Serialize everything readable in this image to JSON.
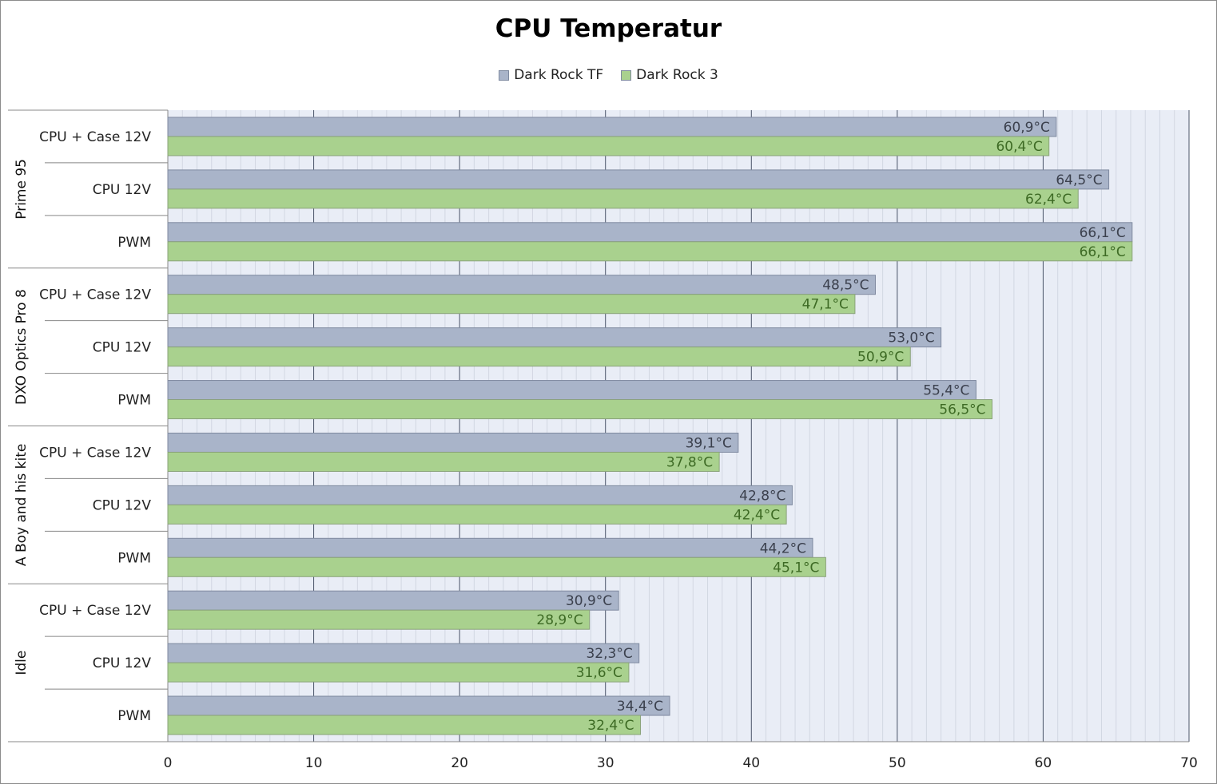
{
  "chart_data": {
    "type": "bar",
    "orientation": "horizontal",
    "title": "CPU Temperatur",
    "xlabel": "",
    "ylabel": "",
    "xlim": [
      0,
      70
    ],
    "xticks": [
      0,
      10,
      20,
      30,
      40,
      50,
      60,
      70
    ],
    "grid": true,
    "legend_position": "top",
    "groups": [
      {
        "name": "Prime 95",
        "categories": [
          "CPU + Case 12V",
          "CPU 12V",
          "PWM"
        ]
      },
      {
        "name": "DXO Optics Pro 8",
        "categories": [
          "CPU + Case 12V",
          "CPU 12V",
          "PWM"
        ]
      },
      {
        "name": "A Boy and his kite",
        "categories": [
          "CPU + Case 12V",
          "CPU 12V",
          "PWM"
        ]
      },
      {
        "name": "Idle",
        "categories": [
          "CPU + Case 12V",
          "CPU 12V",
          "PWM"
        ]
      }
    ],
    "series": [
      {
        "name": "Dark Rock TF",
        "color": "#a9b4c9",
        "label_color": "#3b404d",
        "values": [
          60.9,
          64.5,
          66.1,
          48.5,
          53.0,
          55.4,
          39.1,
          42.8,
          44.2,
          30.9,
          32.3,
          34.4
        ],
        "labels": [
          "60,9°C",
          "64,5°C",
          "66,1°C",
          "48,5°C",
          "53,0°C",
          "55,4°C",
          "39,1°C",
          "42,8°C",
          "44,2°C",
          "30,9°C",
          "32,3°C",
          "34,4°C"
        ]
      },
      {
        "name": "Dark Rock 3",
        "color": "#a9d18e",
        "label_color": "#3d6a24",
        "values": [
          60.4,
          62.4,
          66.1,
          47.1,
          50.9,
          56.5,
          37.8,
          42.4,
          45.1,
          28.9,
          31.6,
          32.4
        ],
        "labels": [
          "60,4°C",
          "62,4°C",
          "66,1°C",
          "47,1°C",
          "50,9°C",
          "56,5°C",
          "37,8°C",
          "42,4°C",
          "45,1°C",
          "28,9°C",
          "31,6°C",
          "32,4°C"
        ]
      }
    ]
  }
}
